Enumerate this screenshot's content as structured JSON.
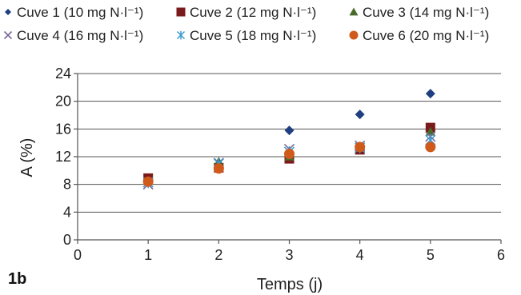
{
  "panel_label": "1b",
  "chart_data": {
    "type": "scatter",
    "xlabel": "Temps (j)",
    "ylabel": "A (%)",
    "xlim": [
      0,
      6
    ],
    "ylim": [
      0,
      24
    ],
    "xticks": [
      0,
      1,
      2,
      3,
      4,
      5,
      6
    ],
    "yticks": [
      0,
      4,
      8,
      12,
      16,
      20,
      24
    ],
    "grid": "horizontal",
    "legend_position": "top",
    "series": [
      {
        "name": "Cuve 1 (10 mg N·l⁻¹)",
        "marker": "diamond",
        "color": "#1f3f80",
        "x": [
          1,
          2,
          3,
          4,
          5
        ],
        "y": [
          8.7,
          10.8,
          15.8,
          18.1,
          21.1
        ]
      },
      {
        "name": "Cuve 2 (12 mg N·l⁻¹)",
        "marker": "square",
        "color": "#7a1a1a",
        "x": [
          1,
          2,
          3,
          4,
          5
        ],
        "y": [
          8.9,
          10.4,
          11.7,
          13.0,
          16.2
        ]
      },
      {
        "name": "Cuve 3 (14 mg N·l⁻¹)",
        "marker": "triangle",
        "color": "#4a6b2a",
        "x": [
          1,
          2,
          3,
          4,
          5
        ],
        "y": [
          8.5,
          11.3,
          12.0,
          13.5,
          15.6
        ]
      },
      {
        "name": "Cuve 4 (16 mg N·l⁻¹)",
        "marker": "x",
        "color": "#7a6a9a",
        "x": [
          1,
          2,
          3,
          4,
          5
        ],
        "y": [
          8.0,
          11.1,
          13.1,
          13.6,
          14.9
        ]
      },
      {
        "name": "Cuve 5 (18 mg N·l⁻¹)",
        "marker": "asterisk",
        "color": "#3a9ad0",
        "x": [
          1,
          2,
          3,
          4,
          5
        ],
        "y": [
          8.3,
          11.0,
          12.7,
          13.3,
          14.4
        ]
      },
      {
        "name": "Cuve 6 (20 mg N·l⁻¹)",
        "marker": "circle",
        "color": "#d05a1a",
        "x": [
          1,
          2,
          3,
          4,
          5
        ],
        "y": [
          8.4,
          10.3,
          12.4,
          13.4,
          13.4
        ]
      }
    ]
  }
}
